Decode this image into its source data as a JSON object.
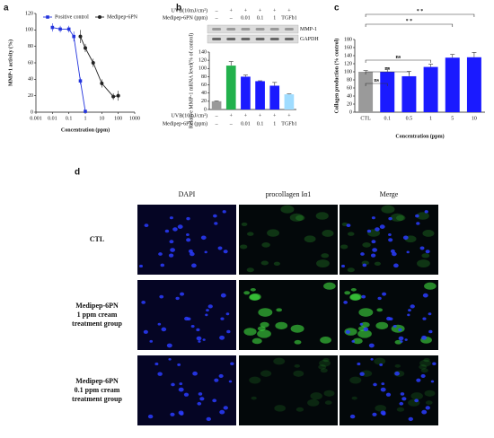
{
  "chart_data": [
    {
      "type": "line",
      "panel": "a",
      "ylabel": "MMP-1 activity (%)",
      "xlabel": "Concentration (ppm)",
      "log_x": true,
      "xlim": [
        0.001,
        1000
      ],
      "xticks": [
        0.001,
        0.01,
        0.1,
        1,
        10,
        100,
        1000
      ],
      "ylim": [
        0,
        120
      ],
      "yticks": [
        0,
        20,
        40,
        60,
        80,
        100,
        120
      ],
      "series": [
        {
          "name": "Positive control",
          "color": "#2233dd",
          "marker": "square",
          "x": [
            0.01,
            0.03,
            0.1,
            0.2,
            0.5,
            1
          ],
          "values": [
            103,
            101,
            101,
            92,
            38,
            1
          ],
          "errors": [
            5,
            4,
            4,
            6,
            4,
            1
          ]
        },
        {
          "name": "Medipep-6PN",
          "color": "#222222",
          "marker": "circle",
          "x": [
            0.5,
            1,
            3,
            10,
            50,
            100
          ],
          "values": [
            92,
            78,
            60,
            35,
            19,
            20
          ],
          "errors": [
            8,
            5,
            5,
            5,
            4,
            6
          ]
        }
      ],
      "legend": "top"
    },
    {
      "type": "bar",
      "panel": "b",
      "ylabel": "Relative MMP-1 mRNA level(% of control)",
      "category_rows": [
        {
          "name": "UVB(10mJ/cm²)",
          "labels": [
            "–",
            "+",
            "+",
            "+",
            "+",
            "+"
          ]
        },
        {
          "name": "Medipep-6PN (ppm)",
          "labels": [
            "–",
            "–",
            "0.01",
            "0.1",
            "1",
            "TGFb1"
          ]
        }
      ],
      "blot_labels": [
        "MMP-1",
        "GAPDH"
      ],
      "values": [
        20,
        107,
        80,
        69,
        58,
        37
      ],
      "errors": [
        1,
        10,
        4,
        1,
        8,
        1
      ],
      "colors": [
        "#9a9a9a",
        "#22b14c",
        "#1a1aff",
        "#1a1aff",
        "#1a1aff",
        "#9fdcff"
      ],
      "ylim": [
        0,
        140
      ],
      "yticks": [
        0,
        20,
        40,
        60,
        80,
        100,
        120,
        140
      ]
    },
    {
      "type": "bar",
      "panel": "c",
      "ylabel": "Collagen production (% control)",
      "xlabel": "Concentration (ppm)",
      "categories": [
        "CTL",
        "0.1",
        "0.5",
        "1",
        "5",
        "10"
      ],
      "values": [
        100,
        100,
        89,
        112,
        135,
        136
      ],
      "errors": [
        3,
        10,
        12,
        7,
        8,
        12
      ],
      "colors": [
        "#9a9a9a",
        "#1a1aff",
        "#1a1aff",
        "#1a1aff",
        "#1a1aff",
        "#1a1aff"
      ],
      "ylim": [
        0,
        180
      ],
      "yticks": [
        0,
        20,
        40,
        60,
        80,
        100,
        120,
        140,
        160,
        180
      ],
      "annotations": [
        {
          "between": [
            "CTL",
            "0.1"
          ],
          "label": "ns"
        },
        {
          "between": [
            "CTL",
            "0.5"
          ],
          "label": "ns"
        },
        {
          "between": [
            "CTL",
            "1"
          ],
          "label": "ns"
        },
        {
          "between": [
            "CTL",
            "5"
          ],
          "label": "* *"
        },
        {
          "between": [
            "CTL",
            "10"
          ],
          "label": "* *"
        }
      ]
    }
  ],
  "panel_d": {
    "panel": "d",
    "columns": [
      "DAPI",
      "procollagen Iα1",
      "Merge"
    ],
    "rows": [
      "CTL",
      "Medipep-6PN\n1 ppm cream\ntreatment group",
      "Medipep-6PN\n0.1 ppm cream\ntreatment group"
    ]
  }
}
